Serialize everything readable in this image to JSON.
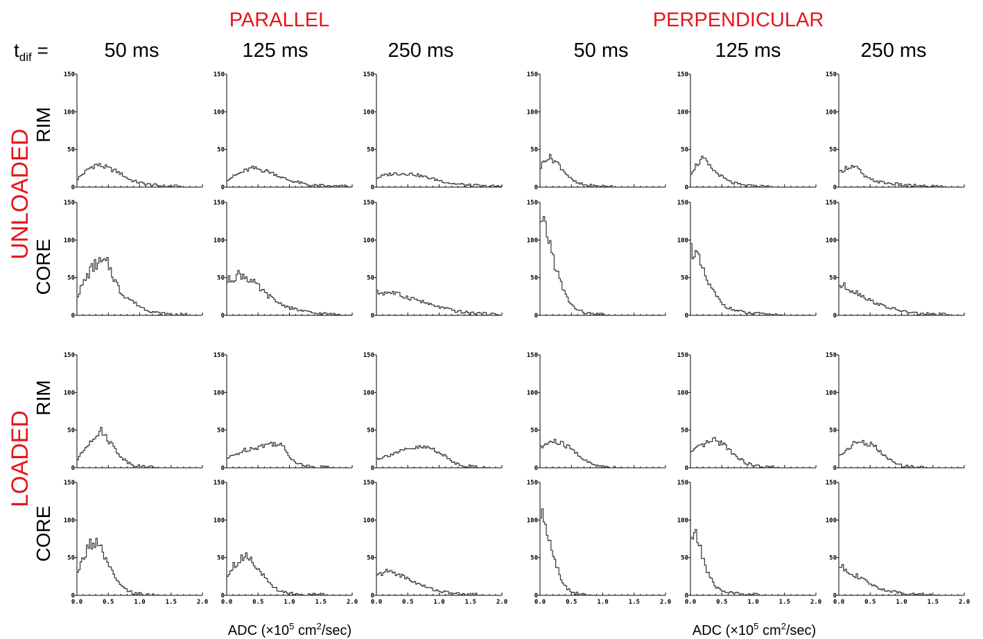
{
  "headers": {
    "parallel": "PARALLEL",
    "perpendicular": "PERPENDICULAR",
    "tdif_t": "t",
    "tdif_sub": "dif",
    "tdif_eq": " =",
    "times": [
      "50 ms",
      "125 ms",
      "250 ms",
      "50 ms",
      "125 ms",
      "250 ms"
    ]
  },
  "groups": [
    "UNLOADED",
    "LOADED"
  ],
  "row_labels": [
    "RIM",
    "CORE",
    "RIM",
    "CORE"
  ],
  "xlabel": {
    "prefix": "ADC (",
    "times": "×",
    "base": "10",
    "exp": "5",
    "unit": " cm",
    "unit_exp": "2",
    "suffix": "/sec)"
  },
  "colors": {
    "header_red": "#e8141b",
    "line": "#333333"
  },
  "chart_data": {
    "type": "histogram",
    "xlim": [
      0.0,
      2.0
    ],
    "ylim": [
      0,
      150
    ],
    "x_ticks": [
      "0.0",
      "0.5",
      "1.0",
      "1.5",
      "2.0"
    ],
    "y_ticks": [
      "0",
      "50",
      "100",
      "150"
    ],
    "profile_x": [
      0.0,
      0.1,
      0.2,
      0.3,
      0.4,
      0.5,
      0.6,
      0.7,
      0.8,
      0.9,
      1.0,
      1.1,
      1.2,
      1.3,
      1.4,
      1.5,
      1.6,
      1.7,
      1.8,
      1.9,
      2.0
    ],
    "panels": [
      {
        "row": "unloaded-rim",
        "column": "parallel-50",
        "y": [
          10,
          18,
          25,
          30,
          28,
          25,
          22,
          18,
          12,
          8,
          6,
          4,
          3,
          2,
          1,
          1,
          1,
          0,
          0,
          0,
          0
        ]
      },
      {
        "row": "unloaded-rim",
        "column": "parallel-125",
        "y": [
          10,
          14,
          18,
          22,
          25,
          24,
          22,
          20,
          16,
          12,
          9,
          7,
          5,
          3,
          2,
          2,
          1,
          1,
          1,
          1,
          0
        ]
      },
      {
        "row": "unloaded-rim",
        "column": "parallel-250",
        "y": [
          12,
          15,
          17,
          18,
          18,
          18,
          17,
          15,
          13,
          11,
          9,
          7,
          5,
          4,
          3,
          2,
          2,
          1,
          1,
          1,
          1
        ]
      },
      {
        "row": "unloaded-rim",
        "column": "perpendicular-50",
        "y": [
          25,
          40,
          38,
          30,
          20,
          10,
          5,
          3,
          2,
          1,
          1,
          1,
          0,
          0,
          0,
          0,
          0,
          0,
          0,
          0,
          0
        ]
      },
      {
        "row": "unloaded-rim",
        "column": "perpendicular-125",
        "y": [
          18,
          30,
          38,
          28,
          20,
          14,
          8,
          5,
          3,
          2,
          1,
          1,
          1,
          0,
          0,
          0,
          0,
          0,
          0,
          0,
          0
        ]
      },
      {
        "row": "unloaded-rim",
        "column": "perpendicular-250",
        "y": [
          18,
          25,
          28,
          25,
          15,
          10,
          8,
          6,
          5,
          4,
          3,
          2,
          2,
          1,
          1,
          1,
          1,
          0,
          0,
          0,
          0
        ]
      },
      {
        "row": "unloaded-core",
        "column": "parallel-50",
        "y": [
          25,
          42,
          58,
          68,
          70,
          68,
          48,
          30,
          24,
          18,
          12,
          8,
          5,
          3,
          2,
          1,
          1,
          1,
          0,
          0,
          0
        ]
      },
      {
        "row": "unloaded-core",
        "column": "parallel-125",
        "y": [
          45,
          50,
          55,
          52,
          45,
          38,
          30,
          24,
          18,
          14,
          10,
          8,
          6,
          4,
          3,
          2,
          2,
          1,
          1,
          1,
          0
        ]
      },
      {
        "row": "unloaded-core",
        "column": "parallel-250",
        "y": [
          30,
          30,
          31,
          29,
          26,
          24,
          22,
          19,
          16,
          13,
          11,
          9,
          7,
          5,
          4,
          3,
          3,
          2,
          2,
          1,
          1
        ]
      },
      {
        "row": "unloaded-core",
        "column": "perpendicular-50",
        "y": [
          118,
          115,
          80,
          50,
          28,
          14,
          7,
          4,
          2,
          1,
          1,
          0,
          0,
          0,
          0,
          0,
          0,
          0,
          0,
          0,
          0
        ]
      },
      {
        "row": "unloaded-core",
        "column": "perpendicular-125",
        "y": [
          90,
          80,
          58,
          40,
          27,
          16,
          10,
          7,
          5,
          3,
          2,
          2,
          1,
          1,
          1,
          0,
          0,
          0,
          0,
          0,
          0
        ]
      },
      {
        "row": "unloaded-core",
        "column": "perpendicular-250",
        "y": [
          40,
          38,
          34,
          30,
          25,
          20,
          16,
          13,
          10,
          8,
          6,
          4,
          3,
          2,
          2,
          1,
          1,
          1,
          0,
          0,
          0
        ]
      },
      {
        "row": "loaded-rim",
        "column": "parallel-50",
        "y": [
          10,
          22,
          35,
          45,
          48,
          38,
          26,
          15,
          8,
          4,
          2,
          1,
          1,
          0,
          0,
          0,
          0,
          0,
          0,
          0,
          0
        ]
      },
      {
        "row": "loaded-rim",
        "column": "parallel-125",
        "y": [
          12,
          16,
          20,
          24,
          26,
          28,
          30,
          32,
          33,
          28,
          15,
          8,
          4,
          2,
          1,
          1,
          1,
          0,
          0,
          0,
          0
        ]
      },
      {
        "row": "loaded-rim",
        "column": "parallel-250",
        "y": [
          12,
          14,
          17,
          20,
          22,
          24,
          26,
          27,
          27,
          25,
          21,
          15,
          9,
          5,
          3,
          2,
          1,
          1,
          0,
          0,
          0
        ]
      },
      {
        "row": "loaded-rim",
        "column": "perpendicular-50",
        "y": [
          25,
          32,
          35,
          33,
          30,
          25,
          18,
          11,
          6,
          3,
          2,
          1,
          1,
          0,
          0,
          0,
          0,
          0,
          0,
          0,
          0
        ]
      },
      {
        "row": "loaded-rim",
        "column": "perpendicular-125",
        "y": [
          20,
          25,
          30,
          34,
          36,
          33,
          26,
          18,
          11,
          6,
          3,
          2,
          1,
          1,
          0,
          0,
          0,
          0,
          0,
          0,
          0
        ]
      },
      {
        "row": "loaded-rim",
        "column": "perpendicular-250",
        "y": [
          15,
          22,
          30,
          34,
          34,
          31,
          26,
          18,
          11,
          6,
          3,
          2,
          1,
          1,
          0,
          0,
          0,
          0,
          0,
          0,
          0
        ]
      },
      {
        "row": "loaded-core",
        "column": "parallel-50",
        "y": [
          25,
          50,
          68,
          70,
          58,
          40,
          24,
          13,
          6,
          3,
          2,
          1,
          1,
          0,
          0,
          0,
          0,
          0,
          0,
          0,
          0
        ]
      },
      {
        "row": "loaded-core",
        "column": "parallel-125",
        "y": [
          25,
          40,
          45,
          55,
          48,
          36,
          24,
          14,
          8,
          5,
          3,
          2,
          1,
          1,
          1,
          1,
          0,
          0,
          0,
          0,
          0
        ]
      },
      {
        "row": "loaded-core",
        "column": "parallel-250",
        "y": [
          25,
          30,
          32,
          30,
          26,
          22,
          18,
          14,
          11,
          8,
          6,
          4,
          3,
          2,
          1,
          1,
          1,
          0,
          0,
          0,
          0
        ]
      },
      {
        "row": "loaded-core",
        "column": "perpendicular-50",
        "y": [
          110,
          95,
          60,
          30,
          12,
          5,
          2,
          1,
          0,
          0,
          0,
          0,
          0,
          0,
          0,
          0,
          0,
          0,
          0,
          0,
          0
        ]
      },
      {
        "row": "loaded-core",
        "column": "perpendicular-125",
        "y": [
          78,
          78,
          50,
          25,
          12,
          6,
          4,
          3,
          2,
          1,
          1,
          1,
          0,
          0,
          0,
          0,
          0,
          0,
          0,
          0,
          0
        ]
      },
      {
        "row": "loaded-core",
        "column": "perpendicular-250",
        "y": [
          38,
          36,
          30,
          25,
          20,
          15,
          11,
          8,
          6,
          4,
          3,
          2,
          2,
          1,
          1,
          1,
          0,
          0,
          0,
          0,
          0
        ]
      }
    ]
  }
}
